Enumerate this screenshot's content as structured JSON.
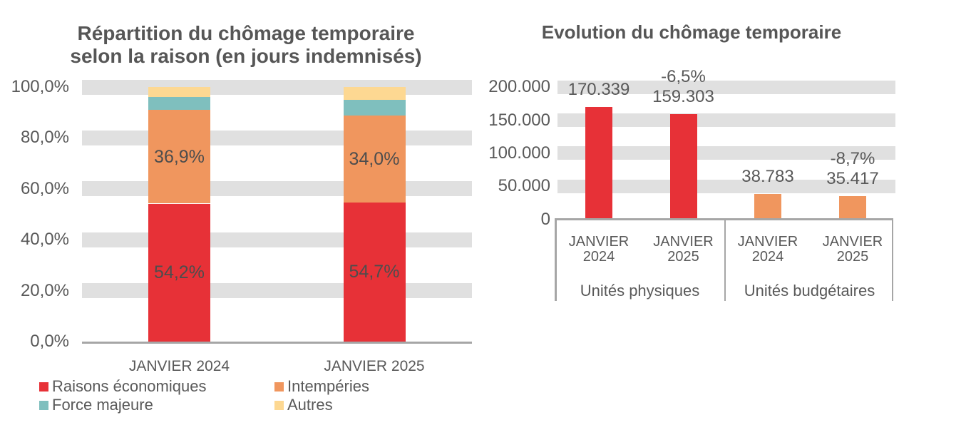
{
  "colors": {
    "raisons_economiques": "#E73137",
    "intemperies": "#F0965E",
    "force_majeure": "#7FBFBE",
    "autres": "#FDD892",
    "gridline_band": "#E0E0E0",
    "axis_line": "#A6A6A6",
    "text": "#595959"
  },
  "chart_data": [
    {
      "type": "bar",
      "subtype": "stacked-100-percent-column",
      "title": "Répartition du chômage temporaire selon la raison (en jours indemnisés)",
      "title_lines": [
        "Répartition du chômage temporaire",
        "selon la raison (en jours indemnisés)"
      ],
      "categories": [
        "JANVIER 2024",
        "JANVIER 2025"
      ],
      "series": [
        {
          "name": "Raisons économiques",
          "color": "#E73137",
          "values": [
            54.2,
            54.7
          ],
          "data_labels": [
            "54,2%",
            "54,7%"
          ]
        },
        {
          "name": "Intempéries",
          "color": "#F0965E",
          "values": [
            36.9,
            34.0
          ],
          "data_labels": [
            "36,9%",
            "34,0%"
          ]
        },
        {
          "name": "Force majeure",
          "color": "#7FBFBE",
          "values": [
            4.9,
            6.3
          ],
          "data_labels": [
            null,
            null
          ]
        },
        {
          "name": "Autres",
          "color": "#FDD892",
          "values": [
            4.0,
            5.0
          ],
          "data_labels": [
            null,
            null
          ]
        }
      ],
      "ylim": [
        0,
        100
      ],
      "y_tick_values": [
        0,
        20,
        40,
        60,
        80,
        100
      ],
      "y_tick_labels": [
        "0,0%",
        "20,0%",
        "40,0%",
        "60,0%",
        "80,0%",
        "100,0%"
      ],
      "grid": "thick-band-gridlines",
      "legend_position": "bottom"
    },
    {
      "type": "bar",
      "subtype": "grouped-column",
      "title": "Evolution du chômage temporaire",
      "groups": [
        {
          "label": "Unités physiques",
          "color": "#E73137",
          "categories": [
            [
              "JANVIER",
              "2024"
            ],
            [
              "JANVIER",
              "2025"
            ]
          ],
          "values": [
            170339,
            159303
          ],
          "value_labels": [
            "170.339",
            "159.303"
          ],
          "change_labels": [
            null,
            "-6,5%"
          ]
        },
        {
          "label": "Unités budgétaires",
          "color": "#F0965E",
          "categories": [
            [
              "JANVIER",
              "2024"
            ],
            [
              "JANVIER",
              "2025"
            ]
          ],
          "values": [
            38783,
            35417
          ],
          "value_labels": [
            "38.783",
            "35.417"
          ],
          "change_labels": [
            null,
            "-8,7%"
          ]
        }
      ],
      "ylim": [
        0,
        200000
      ],
      "y_tick_values": [
        0,
        50000,
        100000,
        150000,
        200000
      ],
      "y_tick_labels": [
        "0",
        "50.000",
        "100.000",
        "150.000",
        "200.000"
      ],
      "grid": "thick-band-gridlines",
      "legend_position": "none"
    }
  ]
}
